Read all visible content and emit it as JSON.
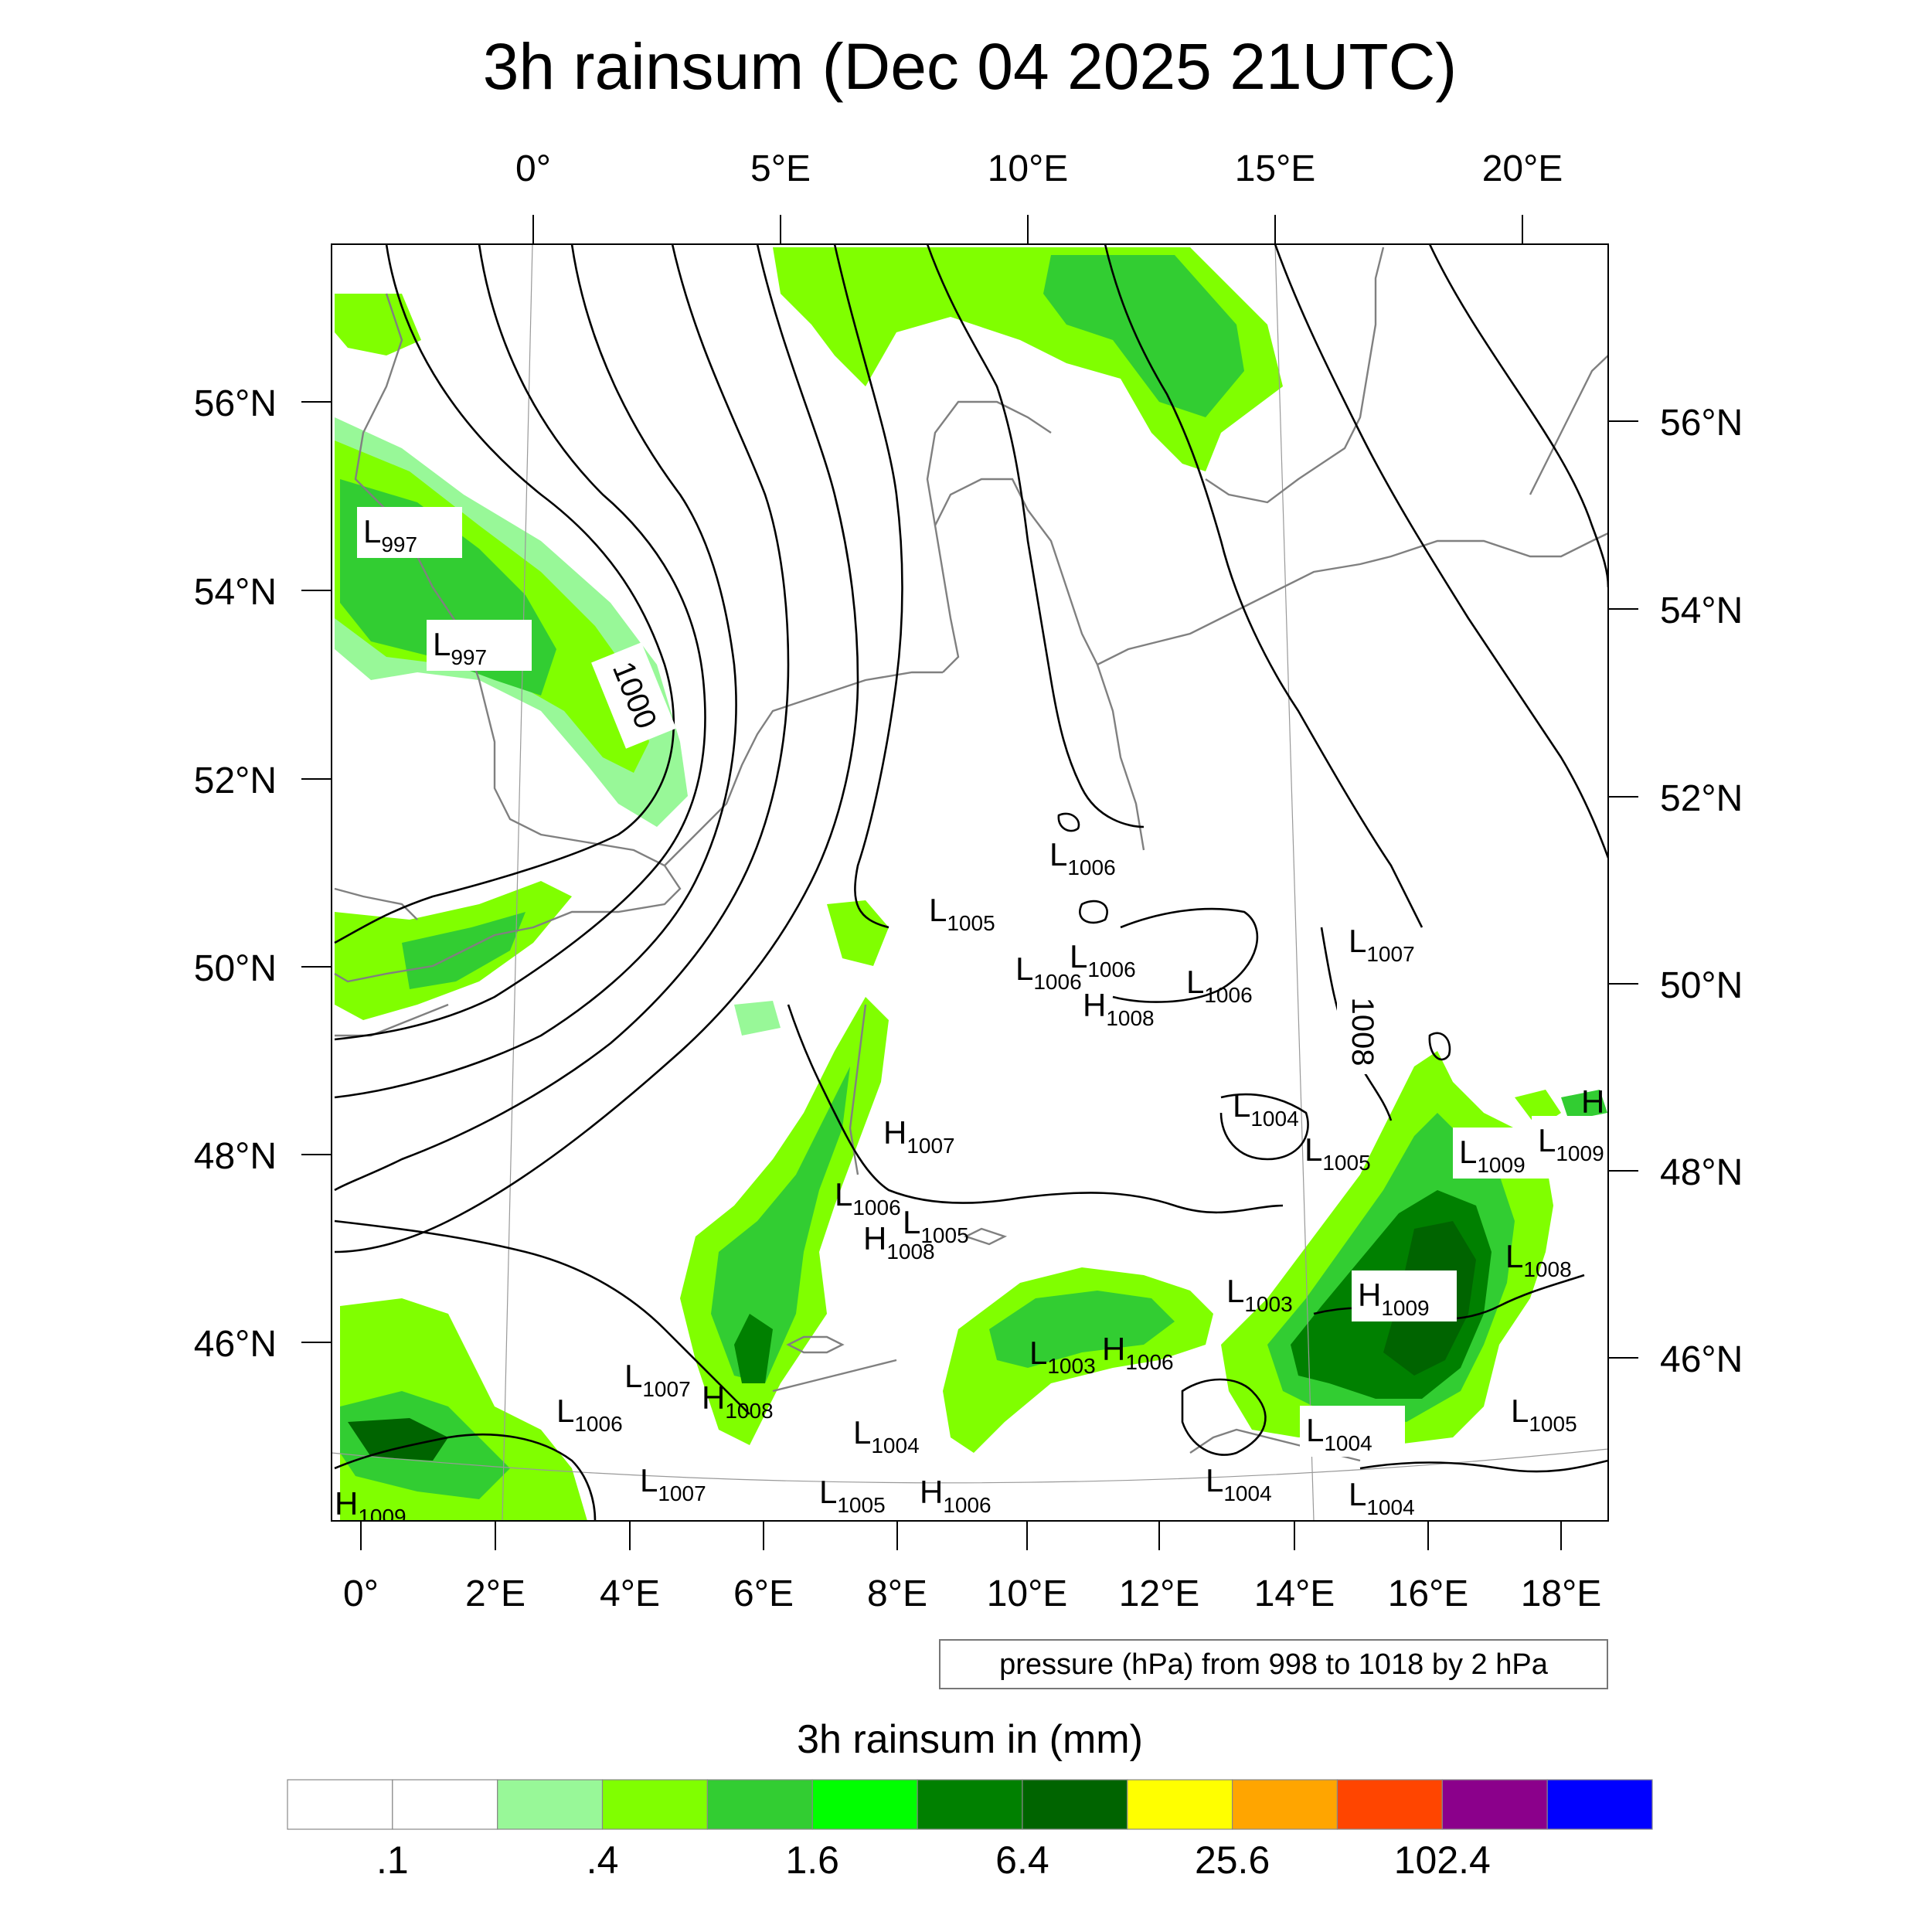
{
  "title": "3h rainsum (Dec 04 2025 21UTC)",
  "top_lon_labels": [
    "0°",
    "5°E",
    "10°E",
    "15°E",
    "20°E"
  ],
  "bottom_lon_labels": [
    "0°",
    "2°E",
    "4°E",
    "6°E",
    "8°E",
    "10°E",
    "12°E",
    "14°E",
    "16°E",
    "18°E"
  ],
  "left_lat_labels": [
    "56°N",
    "54°N",
    "52°N",
    "50°N",
    "48°N",
    "46°N"
  ],
  "right_lat_labels": [
    "56°N",
    "54°N",
    "52°N",
    "50°N",
    "48°N",
    "46°N"
  ],
  "contour_info": "pressure (hPa) from 998 to 1018 by 2 hPa",
  "isobar_labels": [
    "1000",
    "1008"
  ],
  "pressure_centers": [
    {
      "kind": "L",
      "value": "997"
    },
    {
      "kind": "L",
      "value": "997"
    },
    {
      "kind": "L",
      "value": "1006"
    },
    {
      "kind": "L",
      "value": "1005"
    },
    {
      "kind": "L",
      "value": "1007"
    },
    {
      "kind": "L",
      "value": "1006"
    },
    {
      "kind": "L",
      "value": "1006"
    },
    {
      "kind": "L",
      "value": "1006"
    },
    {
      "kind": "H",
      "value": "1008"
    },
    {
      "kind": "L",
      "value": "1004"
    },
    {
      "kind": "L",
      "value": "1005"
    },
    {
      "kind": "L",
      "value": "1009"
    },
    {
      "kind": "L",
      "value": "1009"
    },
    {
      "kind": "H",
      "value": ""
    },
    {
      "kind": "H",
      "value": "1007"
    },
    {
      "kind": "L",
      "value": "1006"
    },
    {
      "kind": "L",
      "value": "1005"
    },
    {
      "kind": "H",
      "value": "1008"
    },
    {
      "kind": "L",
      "value": "1003"
    },
    {
      "kind": "H",
      "value": "1009"
    },
    {
      "kind": "L",
      "value": "1008"
    },
    {
      "kind": "L",
      "value": "1003"
    },
    {
      "kind": "H",
      "value": "1006"
    },
    {
      "kind": "L",
      "value": "1007"
    },
    {
      "kind": "H",
      "value": "1008"
    },
    {
      "kind": "L",
      "value": "1006"
    },
    {
      "kind": "L",
      "value": "1004"
    },
    {
      "kind": "L",
      "value": "1004"
    },
    {
      "kind": "L",
      "value": "1005"
    },
    {
      "kind": "L",
      "value": "1007"
    },
    {
      "kind": "L",
      "value": "1004"
    },
    {
      "kind": "H",
      "value": "1006"
    },
    {
      "kind": "L",
      "value": "1005"
    },
    {
      "kind": "L",
      "value": "1004"
    },
    {
      "kind": "H",
      "value": "1009"
    }
  ],
  "colorbar": {
    "title": "3h rainsum in (mm)",
    "colors": [
      "#ffffff",
      "#ffffff",
      "#98f898",
      "#80ff00",
      "#32cd32",
      "#00ff00",
      "#008000",
      "#006400",
      "#ffff00",
      "#ffa500",
      "#ff4500",
      "#8b008b",
      "#0000ff"
    ],
    "labels": [
      ".1",
      ".4",
      "1.6",
      "6.4",
      "25.6",
      "102.4"
    ]
  },
  "rain_colors": {
    "light": "#98f898",
    "lime": "#80ff00",
    "medium": "#32cd32",
    "bright": "#00ff00",
    "dark": "#008000",
    "darkest": "#006400"
  },
  "coastline_color": "#808080"
}
